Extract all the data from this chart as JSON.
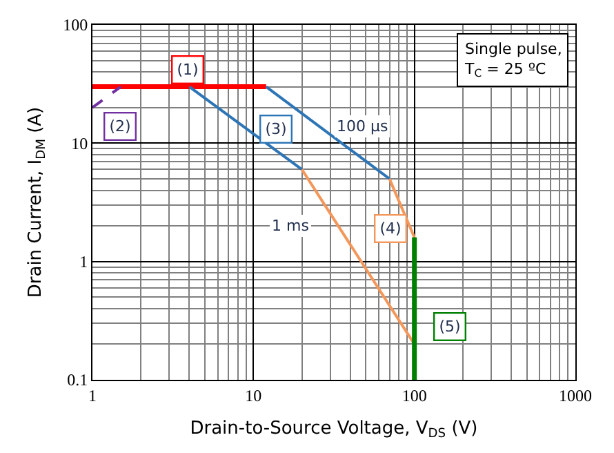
{
  "chart_data": {
    "type": "line",
    "xlabel": "Drain-to-Source Voltage, V$_{DS}$ (V)",
    "ylabel": "Drain Current, I$_{DM}$ (A)",
    "log": "xy",
    "grid": true,
    "legend": false,
    "marker": "none",
    "xlim": [
      1,
      1000
    ],
    "xticks": [
      1,
      10,
      100,
      1000
    ],
    "ylim": [
      0.1,
      100
    ],
    "yticks": [
      0.1,
      1,
      10,
      100
    ],
    "series": [
      {
        "name": "(1)",
        "color": "#ff0000",
        "x": [
          1,
          12
        ],
        "values": [
          30,
          30
        ]
      },
      {
        "name": "(2)",
        "color": "#7030a0",
        "x": [
          1,
          1.5
        ],
        "values": [
          20,
          30
        ],
        "line_style": "dashed"
      },
      {
        "name": "(3)",
        "color": "#2e75b6",
        "x": [
          4,
          20,
          null,
          12,
          70
        ],
        "values": [
          30,
          6,
          null,
          30,
          5
        ]
      },
      {
        "name": "(4)",
        "color": "#f4975a",
        "x": [
          20,
          100,
          null,
          70,
          100
        ],
        "values": [
          6,
          0.2,
          null,
          5,
          1.6
        ]
      },
      {
        "name": "(5)",
        "color": "#008000",
        "x": [
          100,
          100
        ],
        "values": [
          1.6,
          0.1
        ]
      }
    ],
    "annotations": [
      {
        "text": "100 µs",
        "x": 47,
        "y": 14
      },
      {
        "text": "1 ms",
        "x": 17,
        "y": 2
      },
      "Single pulse,\nT$_{C}$ = 25 ºC"
    ]
  }
}
